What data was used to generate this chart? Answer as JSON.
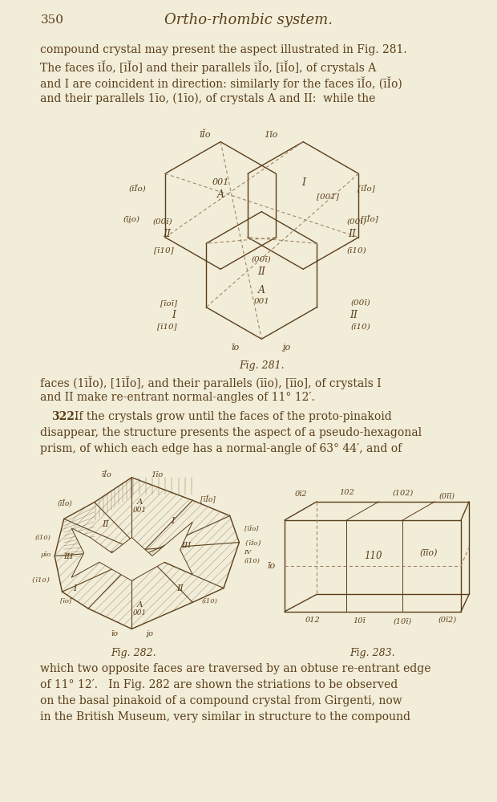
{
  "bg_color": "#f2edd8",
  "text_color": "#5a3e1b",
  "line_color": "#5a3e1b",
  "dashed_color": "#9b8060",
  "page_number": "350",
  "page_title": "Ortho-rhombic system.",
  "fig281_caption": "Fig. 281.",
  "fig282_caption": "Fig. 282.",
  "fig283_caption": "Fig. 283."
}
